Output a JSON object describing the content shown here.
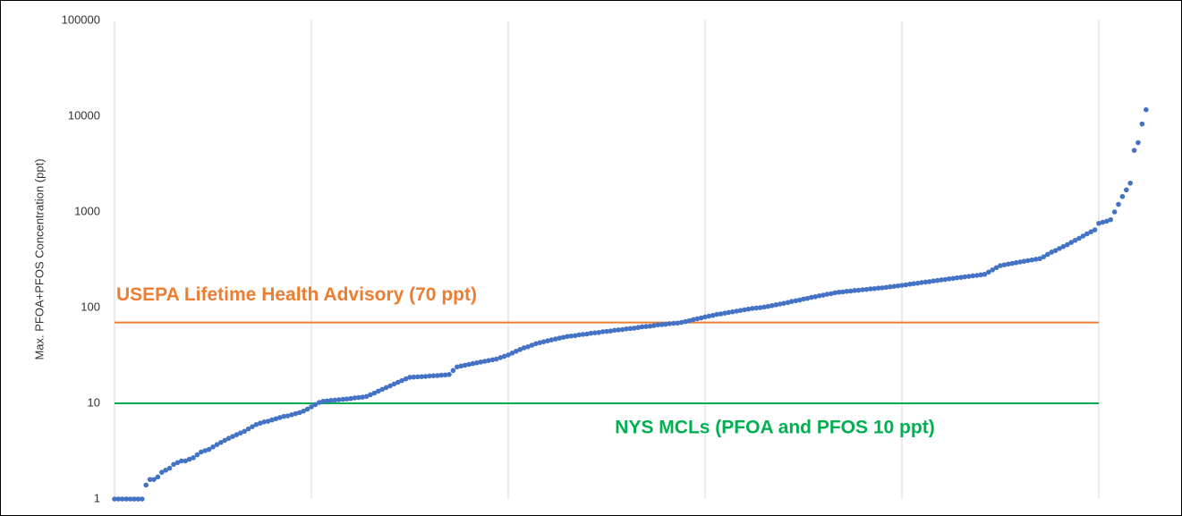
{
  "chart_data": {
    "type": "scatter",
    "y_label": "Max. PFOA+PFOS Concentration (ppt)",
    "log_y": true,
    "color": "#4472c4",
    "xlim": [
      0,
      265
    ],
    "xticks": [
      0,
      50,
      100,
      150,
      200,
      250
    ],
    "grid": true,
    "ylim": [
      1,
      100000
    ],
    "yticks": [
      1,
      10,
      100,
      1000,
      10000,
      100000
    ],
    "hlines": [
      {
        "value": 70,
        "label": "USEPA Lifetime Health Advisory (70 ppt)",
        "color": "#ed7d31",
        "xrange": [
          0,
          250
        ]
      },
      {
        "value": 10,
        "label": "NYS MCLs (PFOA and PFOS 10 ppt)",
        "color": "#00b050",
        "xrange": [
          0,
          250
        ]
      }
    ],
    "values": [
      1,
      1,
      1,
      1,
      1,
      1,
      1,
      1,
      1.4,
      1.6,
      1.6,
      1.7,
      1.9,
      2.0,
      2.1,
      2.3,
      2.4,
      2.5,
      2.5,
      2.6,
      2.7,
      2.9,
      3.1,
      3.2,
      3.3,
      3.5,
      3.7,
      3.9,
      4.1,
      4.3,
      4.5,
      4.7,
      4.9,
      5.1,
      5.4,
      5.7,
      6.0,
      6.2,
      6.4,
      6.5,
      6.7,
      6.9,
      7.1,
      7.3,
      7.4,
      7.6,
      7.8,
      8.0,
      8.3,
      8.7,
      9.2,
      9.7,
      10.2,
      10.5,
      10.6,
      10.7,
      10.8,
      10.9,
      11,
      11.1,
      11.2,
      11.4,
      11.5,
      11.6,
      11.8,
      12.3,
      12.8,
      13.4,
      14,
      14.6,
      15.2,
      15.9,
      16.6,
      17.3,
      18,
      18.7,
      18.8,
      18.9,
      19,
      19.1,
      19.3,
      19.4,
      19.5,
      19.7,
      19.8,
      20,
      22,
      24,
      24.5,
      25,
      25.5,
      26,
      26.5,
      27,
      27.5,
      28,
      28.5,
      29,
      30,
      31,
      32,
      33.5,
      35,
      36.5,
      38,
      39,
      40.5,
      42,
      43,
      44,
      45,
      46,
      47,
      48,
      49,
      50,
      50.5,
      51,
      52,
      52.5,
      53,
      54,
      54.5,
      55,
      56,
      56.5,
      57,
      58,
      58.5,
      59,
      60,
      60.5,
      61,
      62,
      63,
      63.5,
      64,
      65,
      66,
      66.5,
      67,
      68,
      68.5,
      69,
      70,
      71.5,
      73,
      75,
      76.5,
      78,
      80,
      81.5,
      83,
      85,
      86,
      87.5,
      89,
      90.5,
      92,
      93.5,
      95,
      96.5,
      98,
      99,
      100,
      101.5,
      103,
      105,
      107,
      109,
      111,
      113,
      116,
      118,
      120,
      123,
      125,
      128,
      130,
      133,
      135,
      138,
      140,
      143,
      145,
      146,
      148,
      149,
      151,
      152,
      154,
      155,
      157,
      158,
      160,
      161,
      163,
      165,
      167,
      169,
      171,
      173,
      176,
      178,
      180,
      183,
      185,
      187,
      190,
      192,
      195,
      197,
      200,
      202,
      205,
      207,
      210,
      212,
      215,
      217,
      220,
      223,
      235,
      248,
      262,
      275,
      280,
      285,
      290,
      295,
      300,
      305,
      310,
      315,
      320,
      325,
      340,
      360,
      380,
      395,
      415,
      435,
      455,
      480,
      505,
      530,
      560,
      590,
      620,
      650,
      760,
      780,
      800,
      830,
      1000,
      1200,
      1450,
      1700,
      2000,
      4400,
      5300,
      8300,
      11700
    ]
  }
}
